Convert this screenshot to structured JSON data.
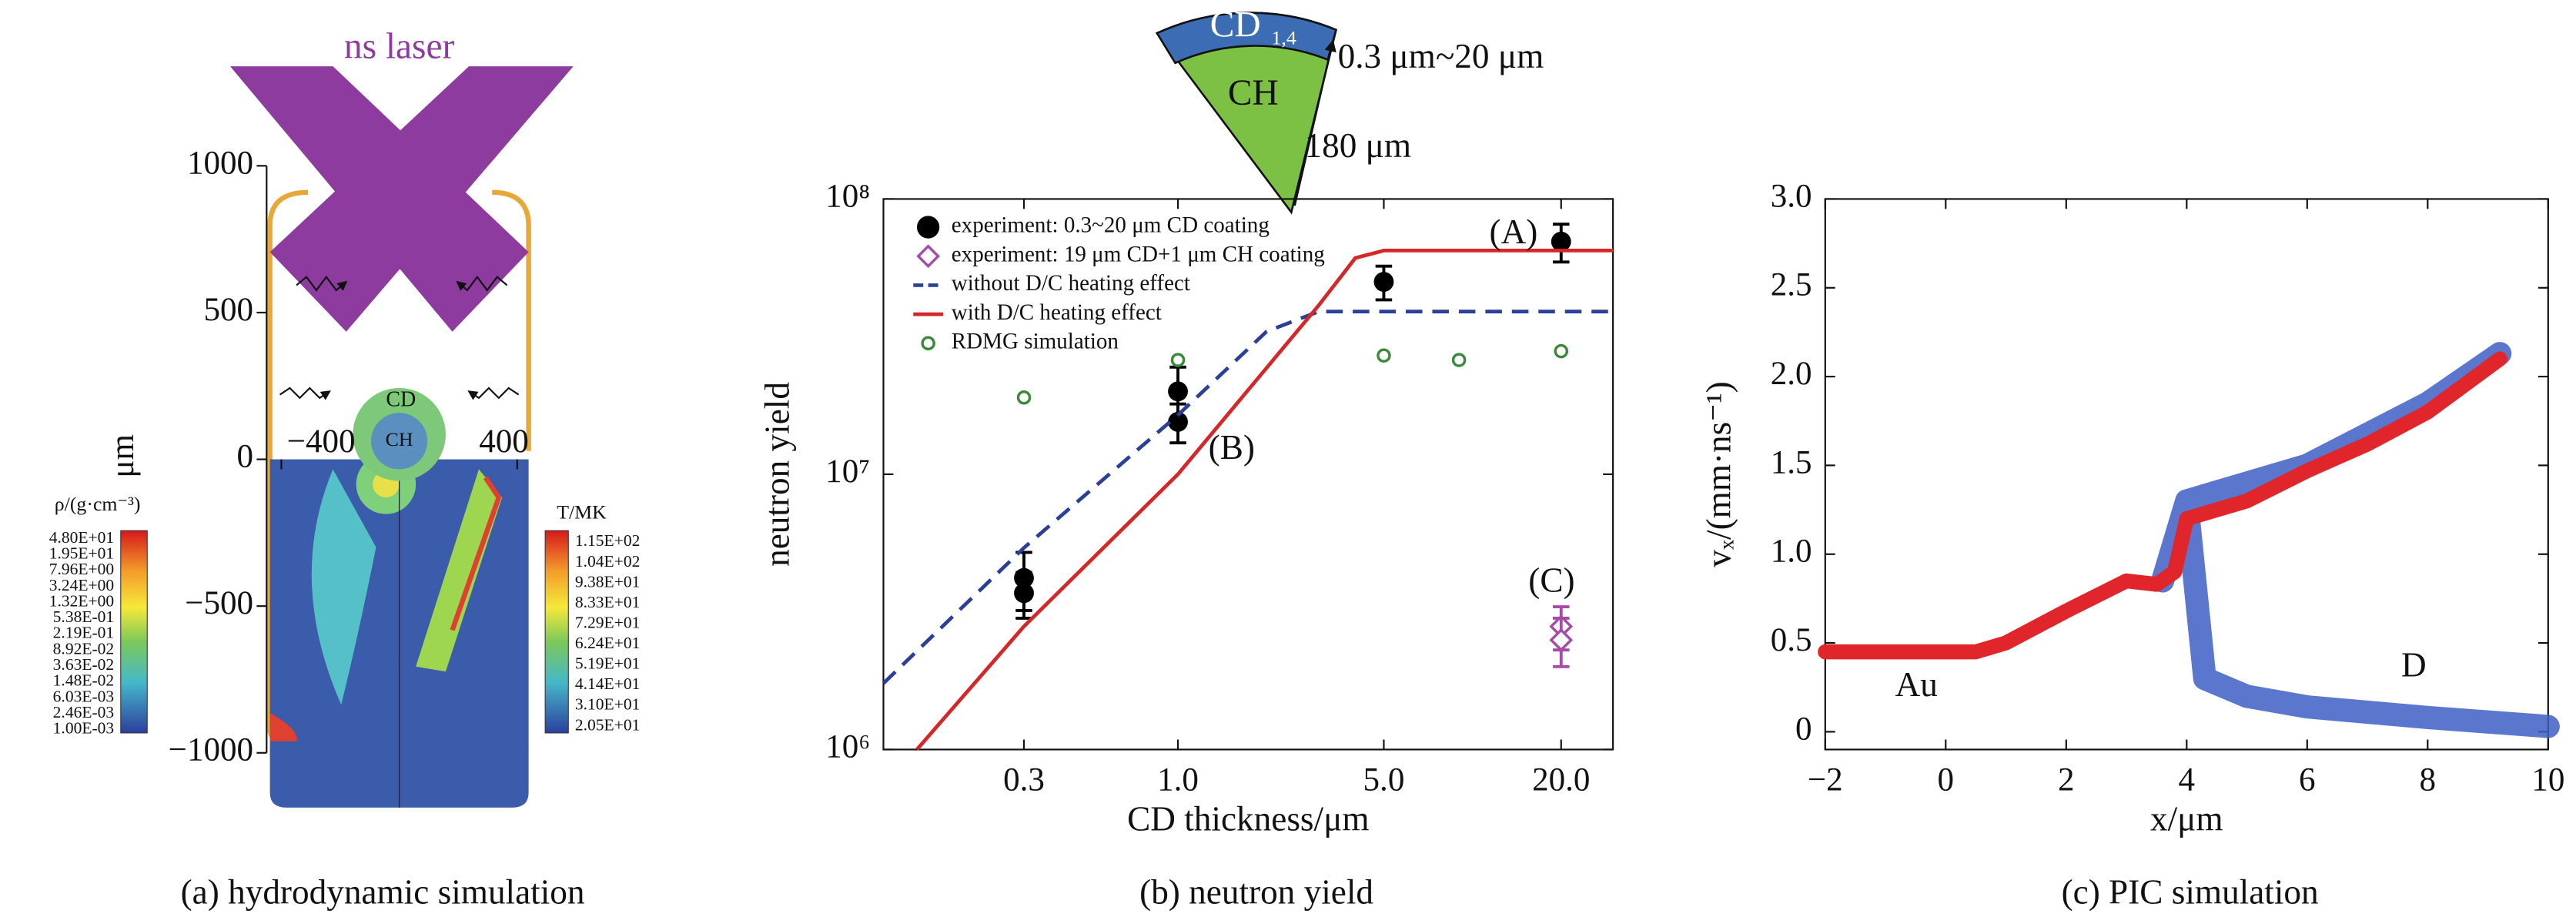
{
  "chart_data": [
    {
      "type": "field",
      "caption": "(a) hydrodynamic simulation",
      "title": "ns laser",
      "ylabel": "μm",
      "ylim": [
        -1000,
        1000
      ],
      "yticks": [
        1000,
        500,
        0,
        {
          "value": -500,
          "label": "−500"
        },
        {
          "value": -1000,
          "label": "−1000"
        }
      ],
      "xlim": [
        -450,
        450
      ],
      "xticks": [
        {
          "value": -400,
          "label": "−400"
        },
        400
      ],
      "annotations": [
        "CD",
        "CH"
      ],
      "colorbars": [
        {
          "label": "ρ/(g·cm⁻³)",
          "ticks": [
            "4.80E+01",
            "1.95E+01",
            "7.96E+00",
            "3.24E+00",
            "1.32E+00",
            "5.38E-01",
            "2.19E-01",
            "8.92E-02",
            "3.63E-02",
            "1.48E-02",
            "6.03E-03",
            "2.46E-03",
            "1.00E-03"
          ]
        },
        {
          "label": "T/MK",
          "ticks": [
            "1.15E+02",
            "1.04E+02",
            "9.38E+01",
            "8.33E+01",
            "7.29E+01",
            "6.24E+01",
            "5.19E+01",
            "4.14E+01",
            "3.10E+01",
            "2.05E+01"
          ]
        }
      ]
    },
    {
      "type": "scatter",
      "caption": "(b) neutron yield",
      "xlabel": "CD thickness/μm",
      "ylabel": "neutron yield",
      "xscale": "log",
      "yscale": "log",
      "xlim": [
        0.1,
        30
      ],
      "ylim": [
        1000000,
        100000000
      ],
      "xticks": [
        0.3,
        {
          "value": 1,
          "label": "1.0"
        },
        {
          "value": 5,
          "label": "5.0"
        },
        {
          "value": 20,
          "label": "20.0"
        }
      ],
      "yticks": [
        {
          "value": 1000000,
          "label": "10⁶"
        },
        {
          "value": 10000000,
          "label": "10⁷"
        },
        {
          "value": 100000000,
          "label": "10⁸"
        }
      ],
      "legend": "upper left",
      "annotations": [
        "(A)",
        "(B)",
        "(C)"
      ],
      "inset": {
        "cap": "CD",
        "cap_sub": "1,4",
        "core": "CH",
        "thickness": "0.3 μm~20 μm",
        "radius": "180 μm"
      },
      "series": [
        {
          "name": "experiment: 0.3~20 μm CD coating",
          "color": "#000000",
          "marker": "circle",
          "x": [
            0.3,
            0.3,
            1,
            1,
            5,
            20
          ],
          "values": [
            4200000,
            3700000,
            20000000,
            15500000,
            50000000,
            70000000
          ],
          "errors": [
            1000000,
            700000,
            4500000,
            2500000,
            7000000,
            11000000
          ]
        },
        {
          "name": "experiment: 19 μm CD+1 μm CH coating",
          "color": "#a64ca6",
          "marker": "diamond",
          "x": [
            20,
            20
          ],
          "values": [
            2800000,
            2500000
          ],
          "errors": [
            500000,
            500000
          ]
        },
        {
          "name": "without D/C heating effect",
          "color": "#2b3f99",
          "style": "dashed",
          "x": [
            0.1,
            0.3,
            1,
            2,
            3,
            5,
            30
          ],
          "values": [
            1740000,
            5400000,
            16400000,
            33000000,
            39000000,
            39000000,
            39000000
          ]
        },
        {
          "name": "with D/C heating effect",
          "color": "#d62728",
          "style": "solid",
          "x": [
            0.13,
            0.3,
            1,
            3,
            4,
            5,
            30
          ],
          "values": [
            1000000,
            2800000,
            10000000,
            41000000,
            61000000,
            65000000,
            65000000
          ]
        },
        {
          "name": "RDMG simulation",
          "color": "#3a8a3a",
          "marker": "open-circle",
          "x": [
            0.3,
            1,
            5,
            9,
            20
          ],
          "values": [
            19000000,
            26000000,
            27000000,
            26000000,
            28000000
          ]
        }
      ]
    },
    {
      "type": "line",
      "caption": "(c) PIC simulation",
      "xlabel": "x/μm",
      "ylabel": "vₓ/(mm·ns⁻¹)",
      "xlim": [
        -2,
        10
      ],
      "ylim": [
        -0.1,
        3.0
      ],
      "xticks": [
        {
          "value": -2,
          "label": "−2"
        },
        0,
        2,
        4,
        6,
        8,
        10
      ],
      "yticks": [
        0,
        0.5,
        {
          "value": 1,
          "label": "1.0"
        },
        1.5,
        {
          "value": 2,
          "label": "2.0"
        },
        2.5,
        {
          "value": 3,
          "label": "3.0"
        }
      ],
      "series": [
        {
          "name": "D",
          "color": "#3d5fc4",
          "x": [
            3.6,
            4,
            4.5,
            6,
            8,
            9.2,
            9.2,
            4,
            4.3,
            5,
            6,
            8,
            10
          ],
          "values": [
            0.85,
            1.3,
            1.35,
            1.5,
            1.85,
            2.13,
            null,
            1.3,
            0.3,
            0.2,
            0.14,
            0.08,
            0.03
          ]
        },
        {
          "name": "Au",
          "color": "#e0262b",
          "x": [
            -2,
            0.5,
            1,
            2,
            3,
            3.5,
            3.8,
            4,
            5,
            6,
            7,
            8,
            9.2
          ],
          "values": [
            0.45,
            0.45,
            0.5,
            0.68,
            0.85,
            0.83,
            0.9,
            1.2,
            1.3,
            1.47,
            1.62,
            1.8,
            2.1
          ]
        }
      ]
    }
  ]
}
